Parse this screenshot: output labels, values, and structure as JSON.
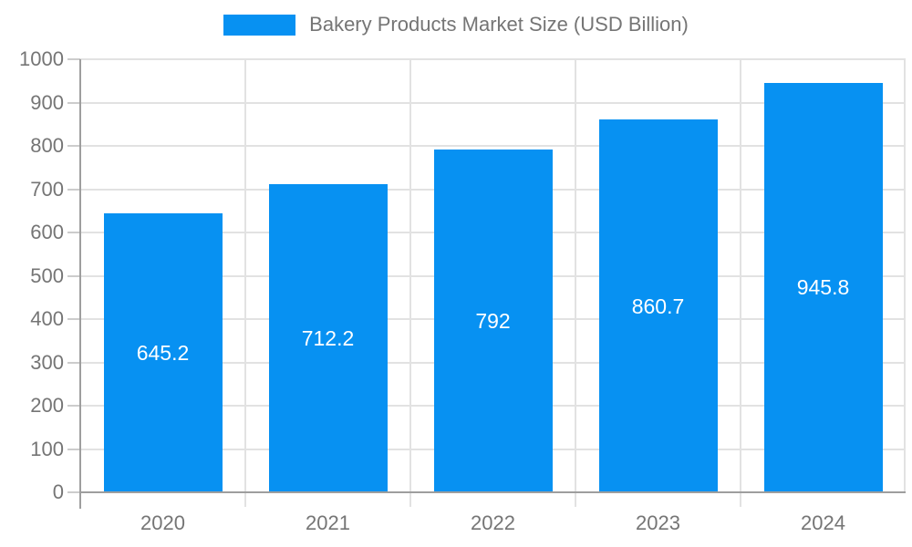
{
  "chart_data": {
    "type": "bar",
    "title": "Bakery Products Market Size (USD Billion)",
    "legend_label": "Bakery Products Market Size (USD Billion)",
    "legend_position": "top",
    "categories": [
      "2020",
      "2021",
      "2022",
      "2023",
      "2024"
    ],
    "values": [
      645.2,
      712.2,
      792,
      860.7,
      945.8
    ],
    "value_labels": [
      "645.2",
      "712.2",
      "792",
      "860.7",
      "945.8"
    ],
    "xlabel": "",
    "ylabel": "",
    "ylim": [
      0,
      1000
    ],
    "ytick_step": 100,
    "ytick_labels": [
      "0",
      "100",
      "200",
      "300",
      "400",
      "500",
      "600",
      "700",
      "800",
      "900",
      "1000"
    ],
    "grid": true,
    "colors": {
      "bar": "#0791f2",
      "bar_value_text": "#ffffff",
      "axis_text": "#757575",
      "grid_line": "#e2e2e2",
      "axis_line": "#9e9e9e",
      "tick_line": "#cccccc",
      "background": "#ffffff"
    }
  }
}
